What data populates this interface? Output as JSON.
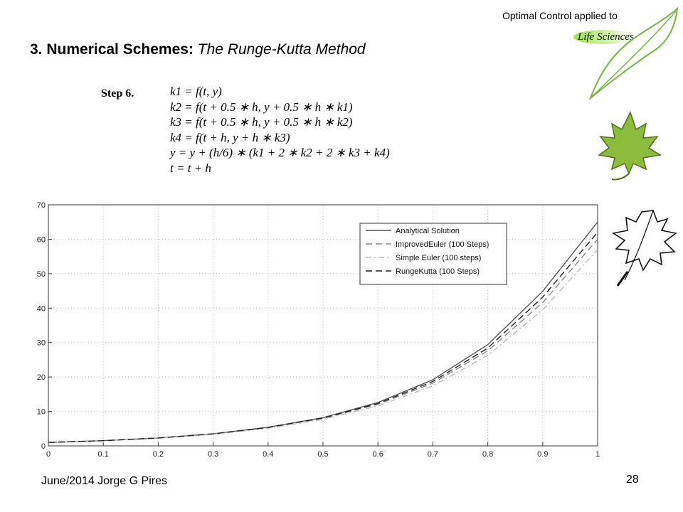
{
  "header": {
    "note": "Optimal Control applied to",
    "brand": "Life Sciences"
  },
  "title": {
    "bold": "3. Numerical Schemes:",
    "italic": "The Runge-Kutta Method"
  },
  "algorithm": {
    "step": "Step 6.",
    "lines": [
      "k1 = f(t, y)",
      "k2 = f(t + 0.5 ∗ h, y + 0.5 ∗ h ∗ k1)",
      "k3 = f(t + 0.5 ∗ h, y + 0.5 ∗ h ∗ k2)",
      "k4 = f(t + h, y + h ∗ k3)",
      "y = y + (h/6) ∗ (k1 + 2 ∗ k2 + 2 ∗ k3 + k4)",
      "t = t + h"
    ]
  },
  "footer": {
    "left": "June/2014 Jorge G Pires",
    "page": "28"
  },
  "chart_data": {
    "type": "line",
    "xlim": [
      0,
      1
    ],
    "ylim": [
      0,
      70
    ],
    "x_ticks": [
      "0",
      "0.1",
      "0.2",
      "0.3",
      "0.4",
      "0.5",
      "0.6",
      "0.7",
      "0.8",
      "0.9",
      "1"
    ],
    "y_ticks": [
      "0",
      "10",
      "20",
      "30",
      "40",
      "50",
      "60",
      "70"
    ],
    "grid": true,
    "legend_position": "top-right",
    "x": [
      0,
      0.1,
      0.2,
      0.3,
      0.4,
      0.5,
      0.6,
      0.7,
      0.8,
      0.9,
      1.0
    ],
    "series": [
      {
        "name": "Analytical Solution",
        "style": "solid",
        "color": "#555555",
        "values": [
          1.0,
          1.5,
          2.3,
          3.5,
          5.4,
          8.2,
          12.6,
          19.2,
          29.4,
          44.9,
          65.0
        ]
      },
      {
        "name": "ImprovedEuler (100 Steps)",
        "style": "dashed",
        "color": "#888888",
        "values": [
          1.0,
          1.5,
          2.3,
          3.5,
          5.3,
          8.0,
          12.1,
          18.2,
          27.6,
          41.6,
          60.0
        ]
      },
      {
        "name": "Simple Euler (100 steps)",
        "style": "dashdot",
        "color": "#bbbbbb",
        "values": [
          1.0,
          1.45,
          2.2,
          3.35,
          5.1,
          7.7,
          11.6,
          17.4,
          26.3,
          39.5,
          57.0
        ]
      },
      {
        "name": "RungeKutta (100 Steps)",
        "style": "dashed",
        "color": "#222222",
        "values": [
          1.0,
          1.5,
          2.3,
          3.5,
          5.35,
          8.1,
          12.3,
          18.7,
          28.4,
          43.2,
          62.0
        ]
      }
    ]
  }
}
